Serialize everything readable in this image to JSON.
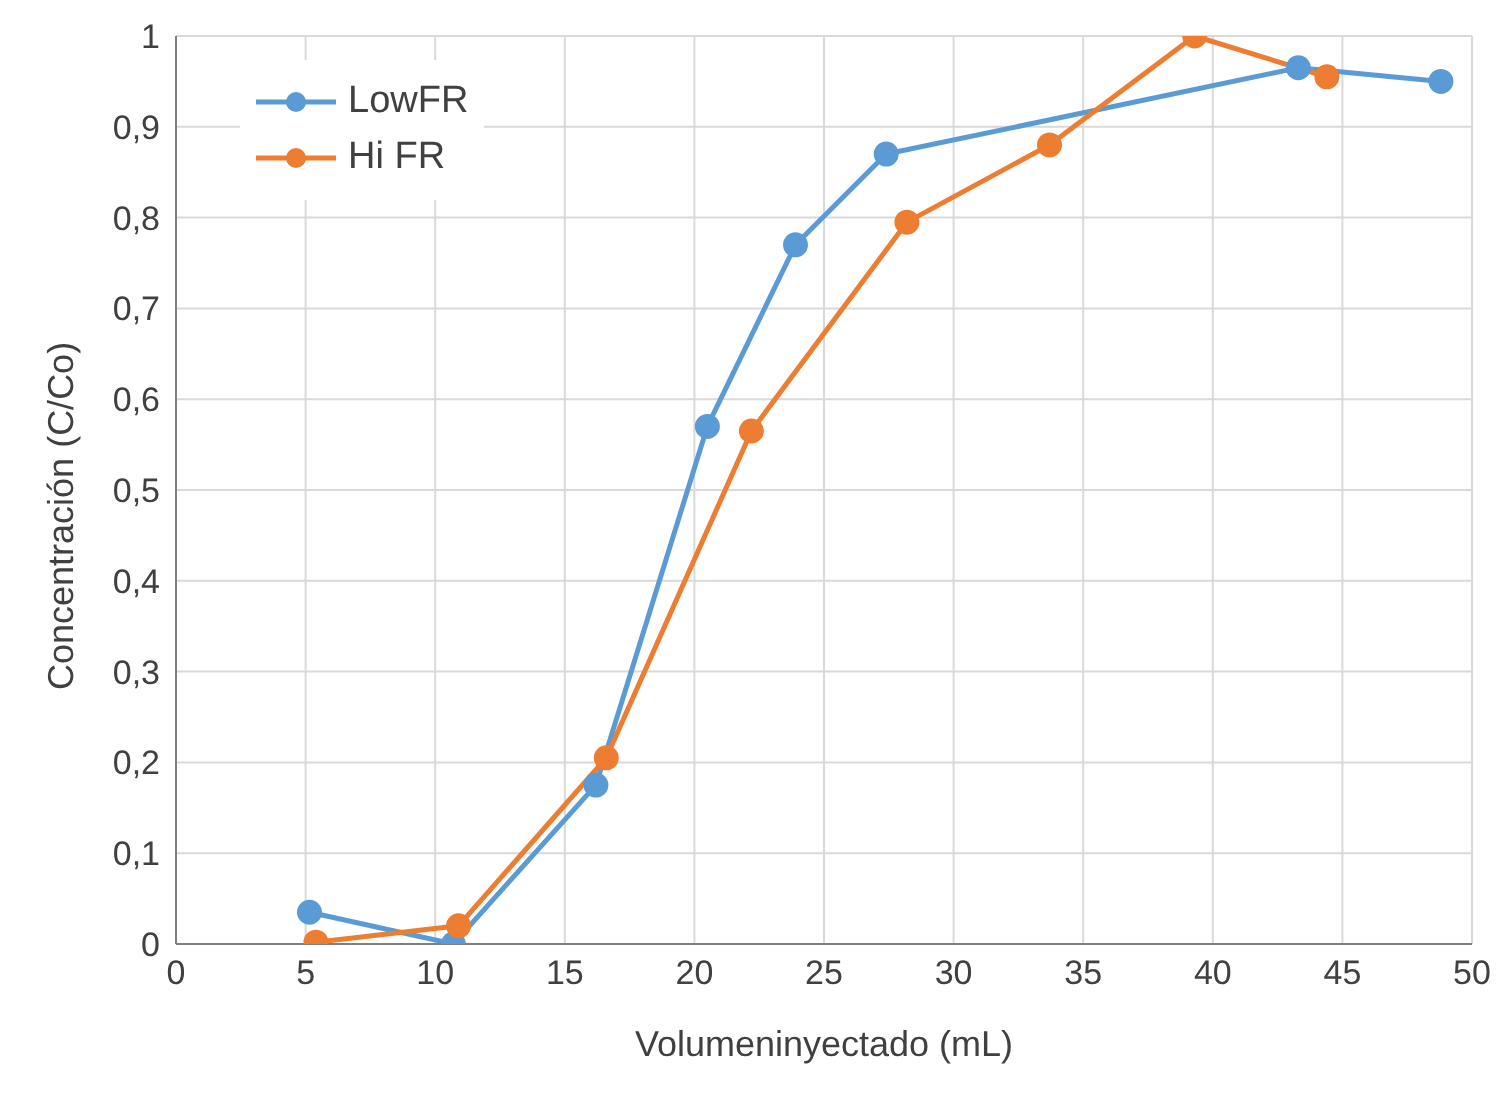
{
  "chart_data": {
    "type": "line",
    "xlabel": "Volumeninyectado  (mL)",
    "ylabel": "Concentración (C/Co)",
    "series": [
      {
        "name": "LowFR",
        "color": "#5b9bd5",
        "x": [
          5.15,
          10.7,
          16.2,
          20.5,
          23.9,
          27.4,
          43.3,
          48.8
        ],
        "values": [
          0.035,
          0,
          0.175,
          0.57,
          0.77,
          0.87,
          0.965,
          0.95
        ]
      },
      {
        "name": "Hi FR",
        "color": "#ed7d31",
        "x": [
          5.4,
          10.9,
          16.6,
          22.2,
          28.2,
          33.7,
          39.3,
          44.4
        ],
        "values": [
          0.002,
          0.02,
          0.205,
          0.565,
          0.795,
          0.88,
          1.0,
          0.955
        ]
      }
    ],
    "xlim": [
      0,
      50
    ],
    "xticks": [
      0,
      5,
      10,
      15,
      20,
      25,
      30,
      35,
      40,
      45,
      50
    ],
    "ylim": [
      0,
      1
    ],
    "yticks": [
      0,
      {
        "value": 0.1,
        "label": "0,1"
      },
      {
        "value": 0.2,
        "label": "0,2"
      },
      {
        "value": 0.3,
        "label": "0,3"
      },
      {
        "value": 0.4,
        "label": "0,4"
      },
      {
        "value": 0.5,
        "label": "0,5"
      },
      {
        "value": 0.6,
        "label": "0,6"
      },
      {
        "value": 0.7,
        "label": "0,7"
      },
      {
        "value": 0.8,
        "label": "0,8"
      },
      {
        "value": 0.9,
        "label": "0,9"
      },
      1
    ],
    "grid": true,
    "legend": "top left",
    "marker": "circle",
    "line_style": "solid"
  }
}
